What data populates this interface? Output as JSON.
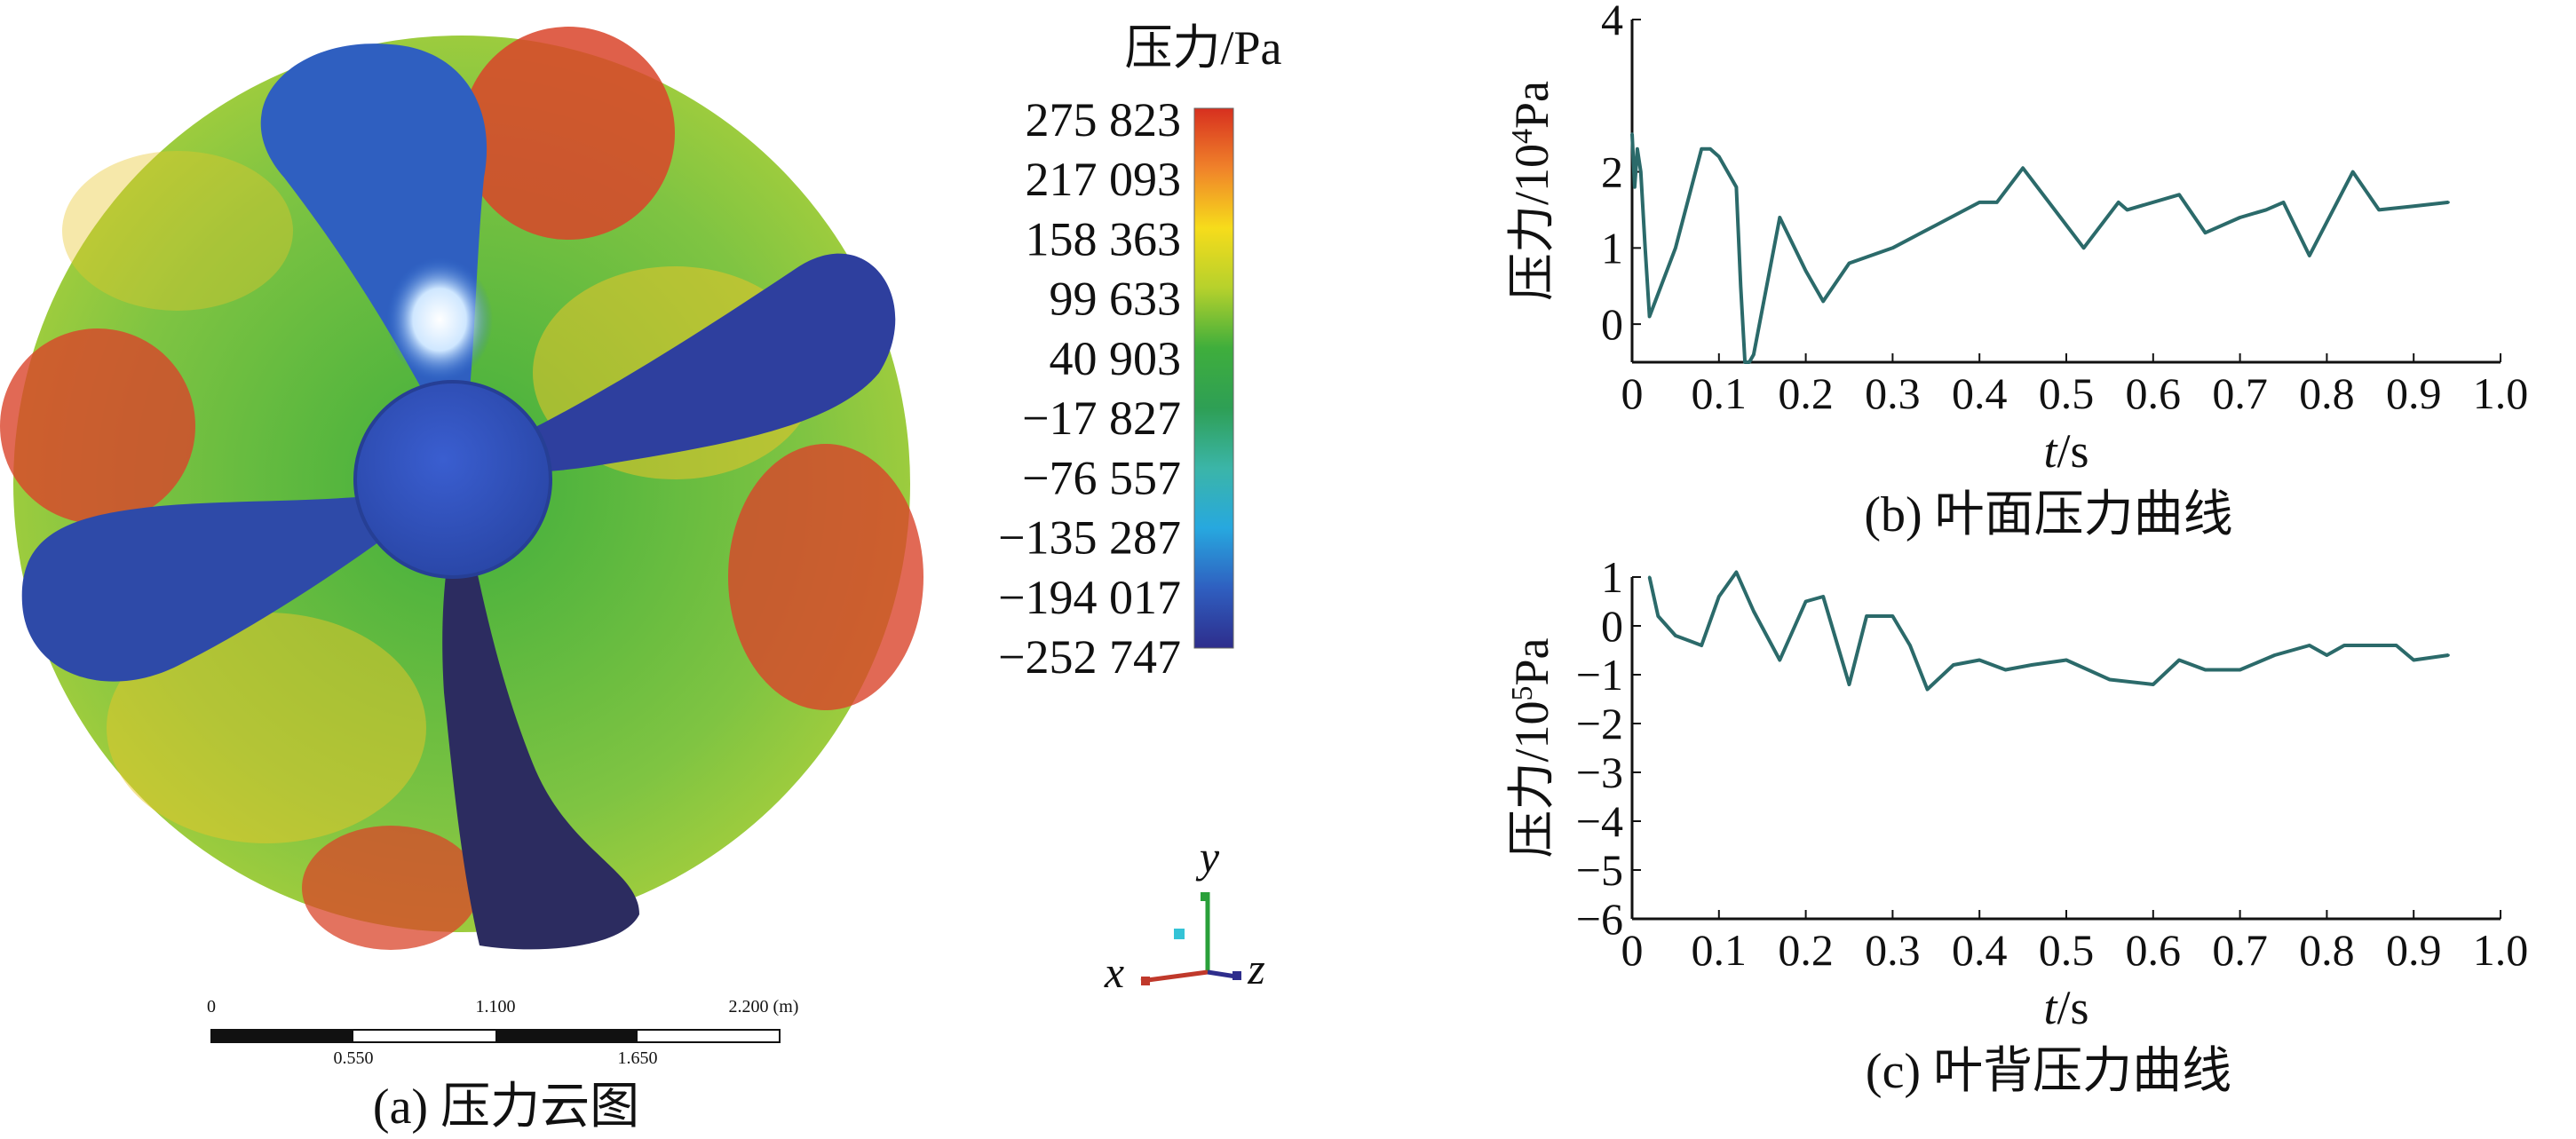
{
  "panel_a": {
    "caption": "(a) 压力云图",
    "legend": {
      "title": "压力/Pa",
      "values": [
        "275 823",
        "217 093",
        "158 363",
        "99 633",
        "40 903",
        "−17 827",
        "−76 557",
        "−135 287",
        "−194 017",
        "−252 747"
      ],
      "colors": [
        "#d7301f",
        "#f0822a",
        "#f6dc1b",
        "#b6d12c",
        "#3fae3c",
        "#2e9f55",
        "#3bb5a8",
        "#27a8df",
        "#2f5fc0",
        "#2e2d8c"
      ]
    },
    "scale_bar": {
      "top_labels": [
        "0",
        "1.100",
        "2.200 (m)"
      ],
      "bottom_labels": [
        "0.550",
        "1.650"
      ]
    },
    "axes_triad": {
      "x": "x",
      "y": "y",
      "z": "z"
    }
  },
  "chart_data": [
    {
      "type": "line",
      "caption": "(b) 叶面压力曲线",
      "ylabel_main": "压力/10",
      "ylabel_exp": "4",
      "ylabel_unit": "Pa",
      "xlabel_italic": "t",
      "xlabel_unit": "/s",
      "xlim": [
        0,
        1.0
      ],
      "ylim": [
        -0.5,
        4
      ],
      "xticks": [
        "0",
        "0.1",
        "0.2",
        "0.3",
        "0.4",
        "0.5",
        "0.6",
        "0.7",
        "0.8",
        "0.9",
        "1.0"
      ],
      "yticks": [
        {
          "v": 0,
          "label": "0"
        },
        {
          "v": 1,
          "label": "1"
        },
        {
          "v": 2,
          "label": "2"
        },
        {
          "v": 4,
          "label": "4"
        }
      ],
      "x": [
        0,
        0.003,
        0.006,
        0.01,
        0.015,
        0.02,
        0.05,
        0.08,
        0.09,
        0.1,
        0.12,
        0.125,
        0.13,
        0.135,
        0.14,
        0.17,
        0.2,
        0.22,
        0.25,
        0.3,
        0.35,
        0.4,
        0.42,
        0.45,
        0.52,
        0.56,
        0.57,
        0.63,
        0.66,
        0.7,
        0.73,
        0.75,
        0.78,
        0.83,
        0.86,
        0.9,
        0.94
      ],
      "y": [
        2.5,
        1.8,
        2.3,
        2.0,
        1.0,
        0.1,
        1.0,
        2.3,
        2.3,
        2.2,
        1.8,
        0.5,
        -0.5,
        -0.5,
        -0.4,
        1.4,
        0.7,
        0.3,
        0.8,
        1.0,
        1.3,
        1.6,
        1.6,
        2.05,
        1.0,
        1.6,
        1.5,
        1.7,
        1.2,
        1.4,
        1.5,
        1.6,
        0.9,
        2.0,
        1.5,
        1.55,
        1.6
      ]
    },
    {
      "type": "line",
      "caption": "(c) 叶背压力曲线",
      "ylabel_main": "压力/10",
      "ylabel_exp": "5",
      "ylabel_unit": "Pa",
      "xlabel_italic": "t",
      "xlabel_unit": "/s",
      "xlim": [
        0,
        1.0
      ],
      "ylim": [
        -6,
        1
      ],
      "xticks": [
        "0",
        "0.1",
        "0.2",
        "0.3",
        "0.4",
        "0.5",
        "0.6",
        "0.7",
        "0.8",
        "0.9",
        "1.0"
      ],
      "yticks": [
        {
          "v": 1,
          "label": "1"
        },
        {
          "v": 0,
          "label": "0"
        },
        {
          "v": -1,
          "label": "−1"
        },
        {
          "v": -2,
          "label": "−2"
        },
        {
          "v": -3,
          "label": "−3"
        },
        {
          "v": -4,
          "label": "−4"
        },
        {
          "v": -5,
          "label": "−5"
        },
        {
          "v": -6,
          "label": "−6"
        }
      ],
      "x": [
        0.02,
        0.03,
        0.05,
        0.08,
        0.1,
        0.12,
        0.14,
        0.17,
        0.2,
        0.22,
        0.25,
        0.27,
        0.3,
        0.32,
        0.34,
        0.37,
        0.4,
        0.43,
        0.46,
        0.5,
        0.55,
        0.6,
        0.63,
        0.66,
        0.7,
        0.74,
        0.78,
        0.8,
        0.82,
        0.86,
        0.88,
        0.9,
        0.94
      ],
      "y": [
        1.0,
        0.2,
        -0.2,
        -0.4,
        0.6,
        1.1,
        0.3,
        -0.7,
        0.5,
        0.6,
        -1.2,
        0.2,
        0.2,
        -0.4,
        -1.3,
        -0.8,
        -0.7,
        -0.9,
        -0.8,
        -0.7,
        -1.1,
        -1.2,
        -0.7,
        -0.9,
        -0.9,
        -0.6,
        -0.4,
        -0.6,
        -0.4,
        -0.4,
        -0.4,
        -0.7,
        -0.6
      ]
    }
  ]
}
